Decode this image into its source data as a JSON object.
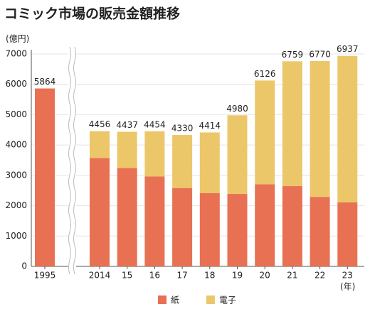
{
  "chart_data": {
    "type": "stacked-bar",
    "title": "コミック市場の販売金額推移",
    "y_label": "(億円)",
    "x_label": "(年)",
    "categories": [
      "1995",
      "2014",
      "15",
      "16",
      "17",
      "18",
      "19",
      "20",
      "21",
      "22",
      "23"
    ],
    "series": [
      {
        "name": "紙",
        "color": "#e87153",
        "values": [
          5864,
          3569,
          3241,
          2963,
          2583,
          2412,
          2387,
          2706,
          2645,
          2291,
          2107
        ]
      },
      {
        "name": "電子",
        "color": "#ecc76a",
        "values": [
          null,
          887,
          1196,
          1491,
          1747,
          2002,
          2593,
          3420,
          4114,
          4479,
          4830
        ]
      }
    ],
    "totals": [
      5864,
      4456,
      4437,
      4454,
      4330,
      4414,
      4980,
      6126,
      6759,
      6770,
      6937
    ],
    "ylim": [
      0,
      7000
    ],
    "yticks": [
      0,
      1000,
      2000,
      3000,
      4000,
      5000,
      6000,
      7000
    ],
    "grid": true
  }
}
